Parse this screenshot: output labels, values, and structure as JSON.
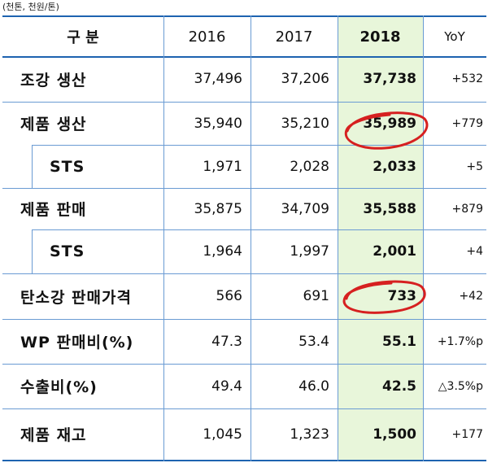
{
  "unit_note": "(천톤, 천원/톤)",
  "header": {
    "category": "구    분",
    "y2016": "2016",
    "y2017": "2017",
    "y2018": "2018",
    "yoy": "YoY"
  },
  "rows": [
    {
      "label": "조강 생산",
      "v2016": "37,496",
      "v2017": "37,206",
      "v2018": "37,738",
      "yoy": "+532"
    },
    {
      "label": "제품 생산",
      "v2016": "35,940",
      "v2017": "35,210",
      "v2018": "35,989",
      "yoy": "+779"
    },
    {
      "label": "STS",
      "v2016": "1,971",
      "v2017": "2,028",
      "v2018": "2,033",
      "yoy": "+5"
    },
    {
      "label": "제품 판매",
      "v2016": "35,875",
      "v2017": "34,709",
      "v2018": "35,588",
      "yoy": "+879"
    },
    {
      "label": "STS",
      "v2016": "1,964",
      "v2017": "1,997",
      "v2018": "2,001",
      "yoy": "+4"
    },
    {
      "label": "탄소강 판매가격",
      "v2016": "566",
      "v2017": "691",
      "v2018": "733",
      "yoy": "+42"
    },
    {
      "label": "WP 판매비(%)",
      "v2016": "47.3",
      "v2017": "53.4",
      "v2018": "55.1",
      "yoy": "+1.7%p"
    },
    {
      "label": "수출비(%)",
      "v2016": "49.4",
      "v2017": "46.0",
      "v2018": "42.5",
      "yoy": "△3.5%p"
    },
    {
      "label": "제품 재고",
      "v2016": "1,045",
      "v2017": "1,323",
      "v2018": "1,500",
      "yoy": "+177"
    }
  ],
  "colors": {
    "rule": "#1e63b0",
    "highlight": "#e8f6da",
    "annotation": "#d62020"
  }
}
